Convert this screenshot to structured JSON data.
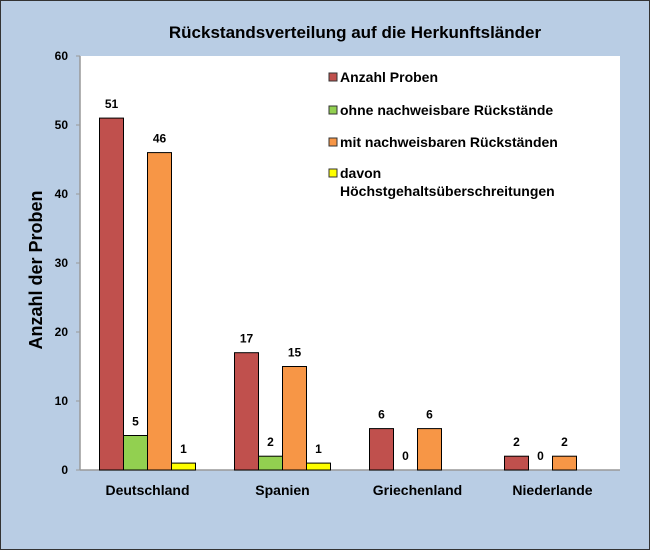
{
  "chart_data": {
    "type": "bar",
    "title": "Rückstandsverteilung  auf die Herkunftsländer",
    "xlabel": "",
    "ylabel": "Anzahl der Proben",
    "ylim": [
      0,
      60
    ],
    "yticks": [
      0,
      10,
      20,
      30,
      40,
      50,
      60
    ],
    "grid": false,
    "legend_position": "top-right",
    "categories": [
      "Deutschland",
      "Spanien",
      "Griechenland",
      "Niederlande"
    ],
    "series": [
      {
        "name": "Anzahl Proben",
        "color": "#c0504d",
        "values": [
          51,
          17,
          6,
          2
        ]
      },
      {
        "name": "ohne nachweisbare Rückstände",
        "color": "#92d050",
        "values": [
          5,
          2,
          0,
          0
        ]
      },
      {
        "name": "mit nachweisbaren Rückständen",
        "color": "#f79646",
        "values": [
          46,
          15,
          6,
          2
        ]
      },
      {
        "name": "davon Höchstgehaltsüberschreitungen",
        "legend_lines": [
          "davon",
          "Höchstgehaltsüberschreitungen"
        ],
        "color": "#ffff00",
        "values": [
          1,
          1,
          null,
          null
        ]
      }
    ]
  }
}
